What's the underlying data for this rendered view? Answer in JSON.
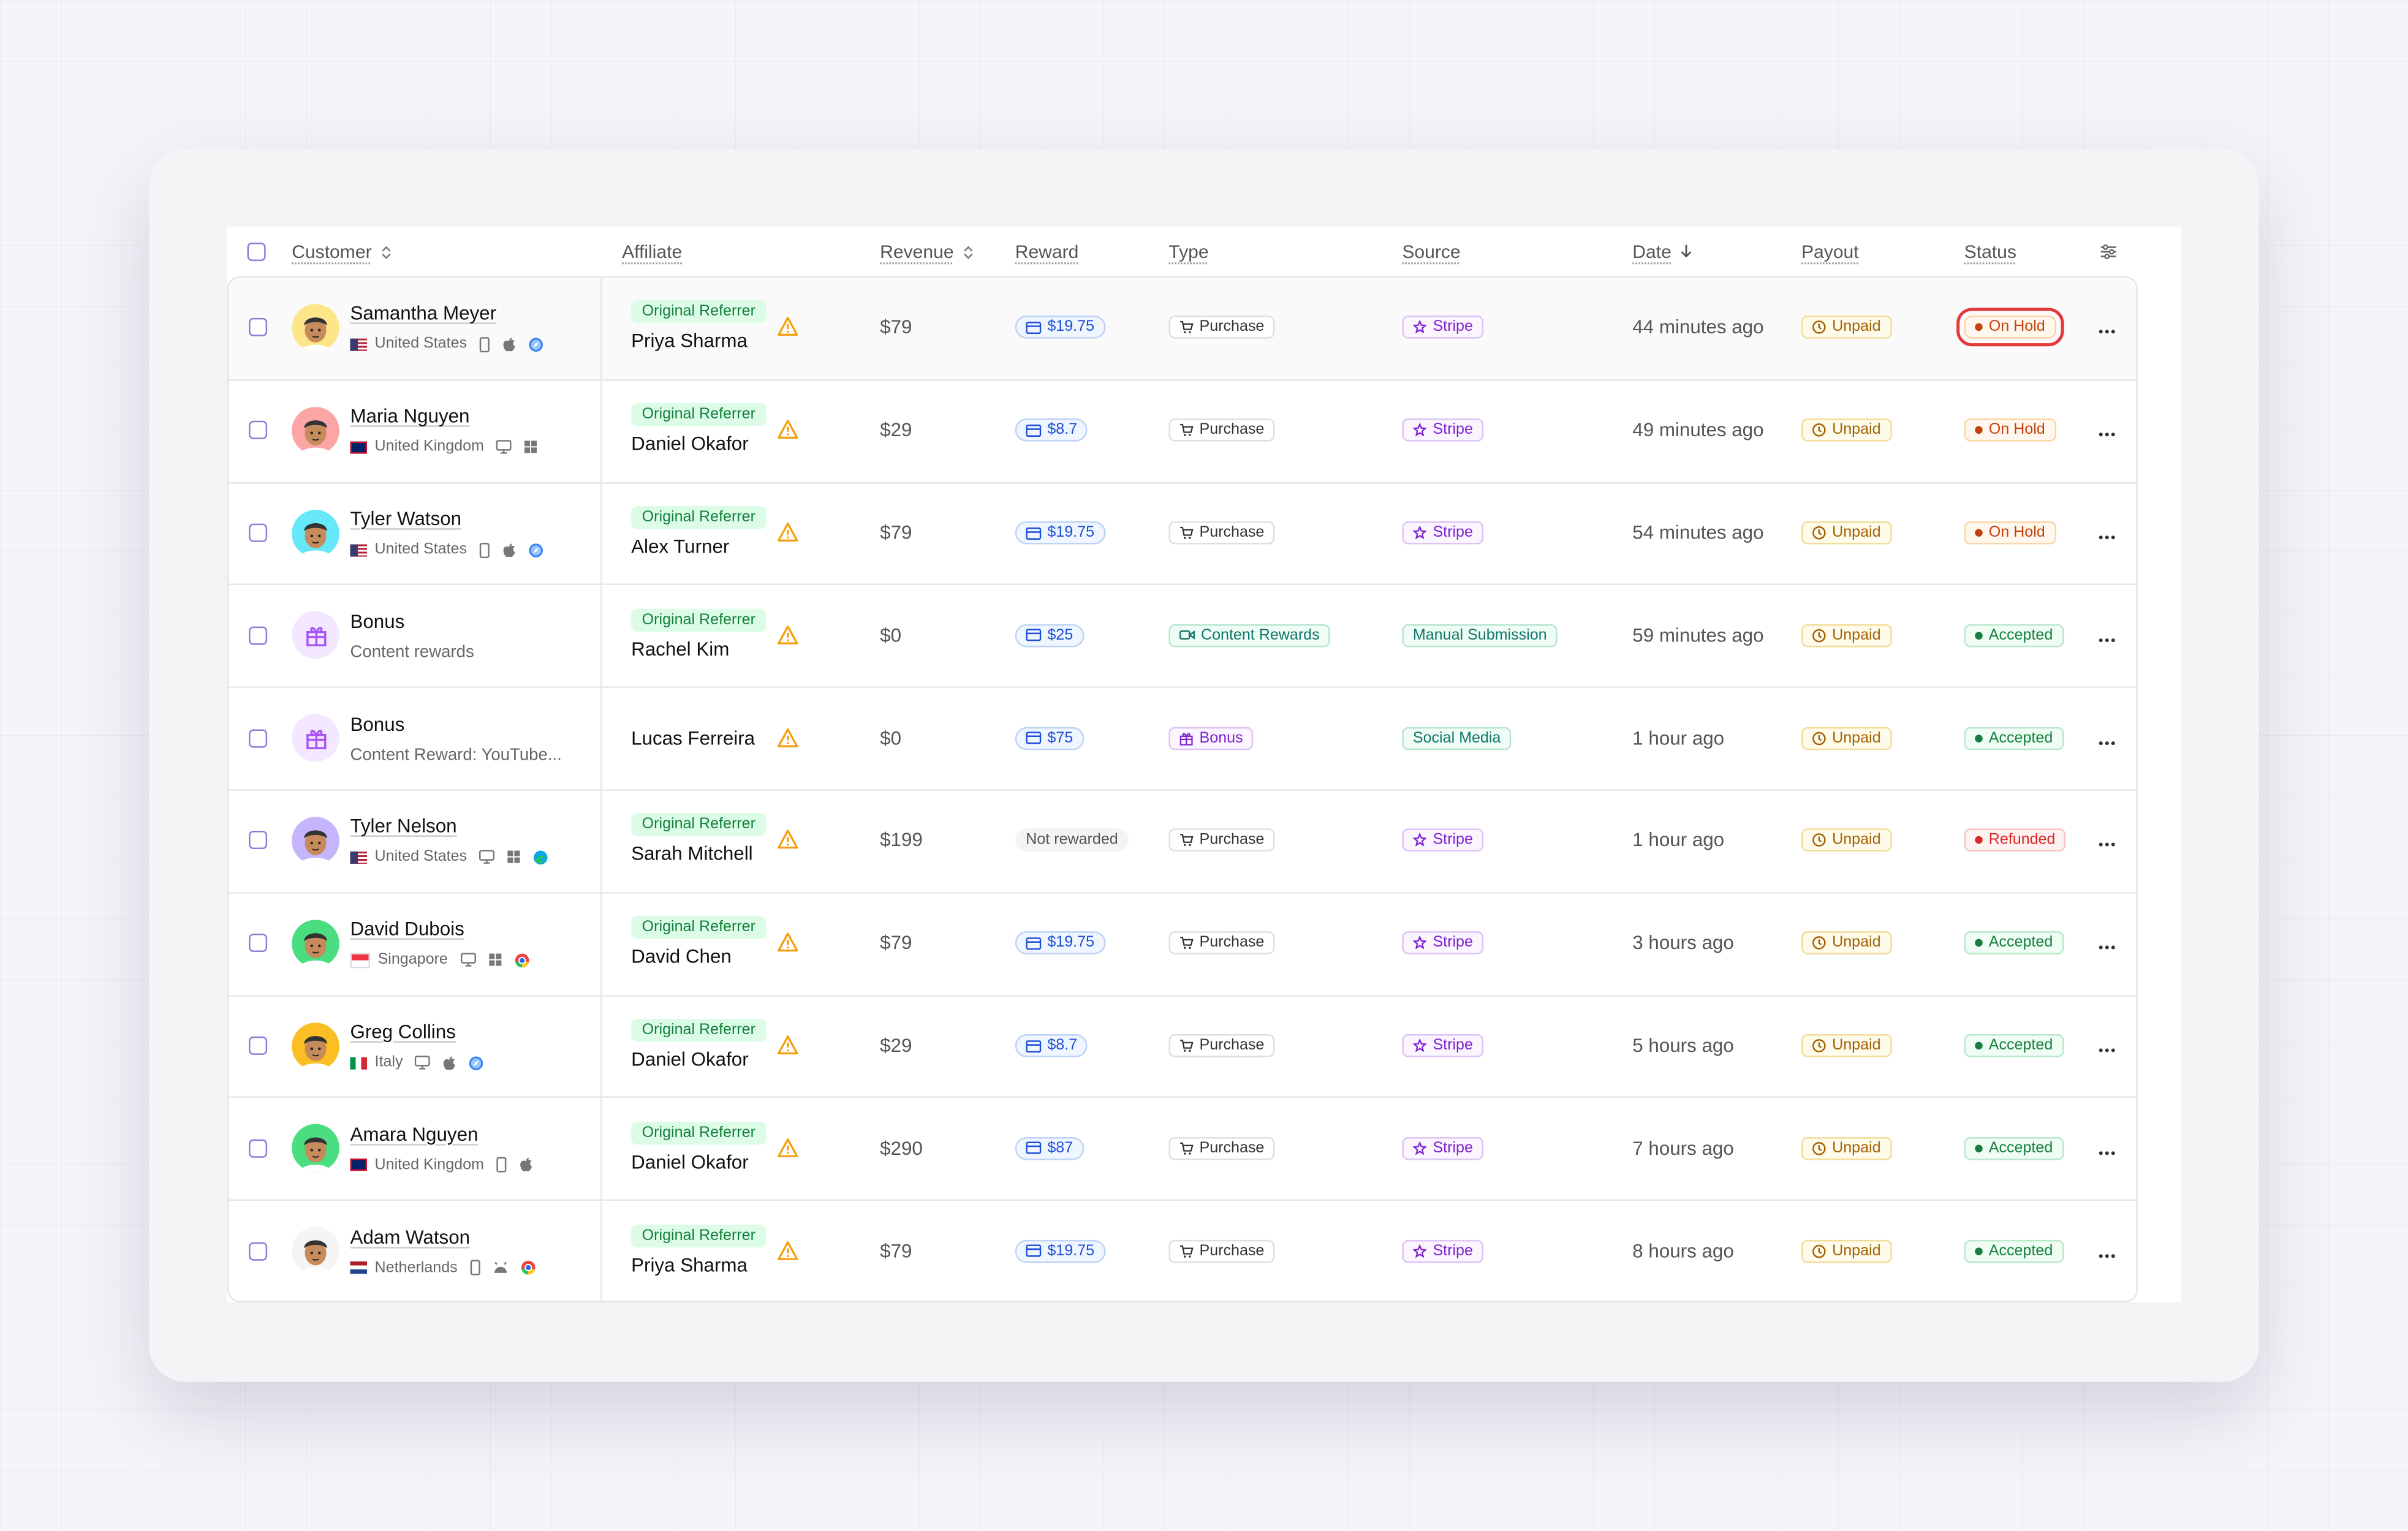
{
  "header": {
    "columns": [
      "Customer",
      "Affiliate",
      "Revenue",
      "Reward",
      "Type",
      "Source",
      "Date",
      "Payout",
      "Status"
    ]
  },
  "table": {
    "rows": [
      {
        "customer": "Samantha Meyer",
        "detail": "United States",
        "affiliate_tag": "Original Referrer",
        "affiliate": "Priya Sharma",
        "revenue": "$79",
        "reward": "$19.75",
        "type": "Purchase",
        "source": "Stripe",
        "date": "44 minutes ago",
        "payout": "Unpaid",
        "status": "On Hold"
      },
      {
        "customer": "Maria Nguyen",
        "detail": "United Kingdom",
        "affiliate_tag": "Original Referrer",
        "affiliate": "Daniel Okafor",
        "revenue": "$29",
        "reward": "$8.7",
        "type": "Purchase",
        "source": "Stripe",
        "date": "49 minutes ago",
        "payout": "Unpaid",
        "status": "On Hold"
      },
      {
        "customer": "Tyler Watson",
        "detail": "United States",
        "affiliate_tag": "Original Referrer",
        "affiliate": "Alex Turner",
        "revenue": "$79",
        "reward": "$19.75",
        "type": "Purchase",
        "source": "Stripe",
        "date": "54 minutes ago",
        "payout": "Unpaid",
        "status": "On Hold"
      },
      {
        "customer": "Bonus",
        "detail": "Content rewards",
        "affiliate_tag": "Original Referrer",
        "affiliate": "Rachel Kim",
        "revenue": "$0",
        "reward": "$25",
        "type": "Content Rewards",
        "source": "Manual Submission",
        "date": "59 minutes ago",
        "payout": "Unpaid",
        "status": "Accepted"
      },
      {
        "customer": "Bonus",
        "detail": "Content Reward: YouTube...",
        "affiliate": "Lucas Ferreira",
        "revenue": "$0",
        "reward": "$75",
        "type": "Bonus",
        "source": "Social Media",
        "date": "1 hour ago",
        "payout": "Unpaid",
        "status": "Accepted"
      },
      {
        "customer": "Tyler Nelson",
        "detail": "United States",
        "affiliate_tag": "Original Referrer",
        "affiliate": "Sarah Mitchell",
        "revenue": "$199",
        "reward": "Not rewarded",
        "type": "Purchase",
        "source": "Stripe",
        "date": "1 hour ago",
        "payout": "Unpaid",
        "status": "Refunded"
      },
      {
        "customer": "David Dubois",
        "detail": "Singapore",
        "affiliate_tag": "Original Referrer",
        "affiliate": "David Chen",
        "revenue": "$79",
        "reward": "$19.75",
        "type": "Purchase",
        "source": "Stripe",
        "date": "3 hours ago",
        "payout": "Unpaid",
        "status": "Accepted"
      },
      {
        "customer": "Greg Collins",
        "detail": "Italy",
        "affiliate_tag": "Original Referrer",
        "affiliate": "Daniel Okafor",
        "revenue": "$29",
        "reward": "$8.7",
        "type": "Purchase",
        "source": "Stripe",
        "date": "5 hours ago",
        "payout": "Unpaid",
        "status": "Accepted"
      },
      {
        "customer": "Amara Nguyen",
        "detail": "United Kingdom",
        "affiliate_tag": "Original Referrer",
        "affiliate": "Daniel Okafor",
        "revenue": "$290",
        "reward": "$87",
        "type": "Purchase",
        "source": "Stripe",
        "date": "7 hours ago",
        "payout": "Unpaid",
        "status": "Accepted"
      },
      {
        "customer": "Adam Watson",
        "detail": "Netherlands",
        "affiliate_tag": "Original Referrer",
        "affiliate": "Priya Sharma",
        "revenue": "$79",
        "reward": "$19.75",
        "type": "Purchase",
        "source": "Stripe",
        "date": "8 hours ago",
        "payout": "Unpaid",
        "status": "Accepted"
      }
    ]
  }
}
